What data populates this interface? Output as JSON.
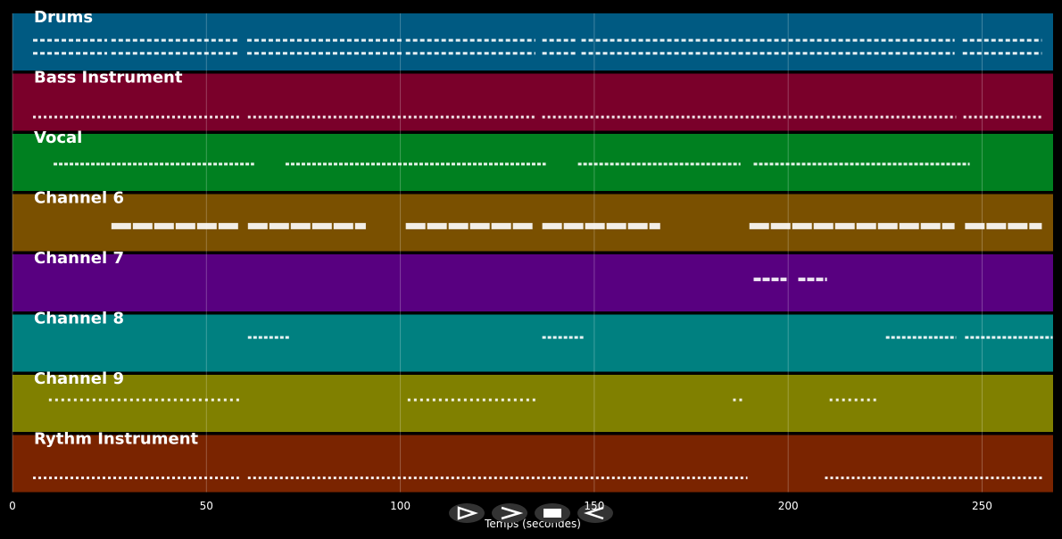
{
  "chart_data": {
    "type": "piano-roll",
    "xlabel": "Temps (secondes)",
    "xlim": [
      0,
      268.3
    ],
    "xticks": [
      0,
      50,
      100,
      150,
      200,
      250
    ],
    "grid": true,
    "tracks": [
      {
        "name": "Drums",
        "color": "#005a82",
        "phrases": [
          [
            5.3,
            24.4
          ],
          [
            25.5,
            58.4
          ],
          [
            60.5,
            100.3
          ],
          [
            101.4,
            134.8
          ],
          [
            136.6,
            145.4
          ],
          [
            146.7,
            242.9
          ],
          [
            245,
            265.4
          ]
        ]
      },
      {
        "name": "Bass Instrument",
        "color": "#7a002a",
        "phrases": [
          [
            5.3,
            58.4
          ],
          [
            60.7,
            134.8
          ],
          [
            136.6,
            209.5
          ],
          [
            210,
            243.3
          ],
          [
            245.2,
            265.9
          ]
        ]
      },
      {
        "name": "Vocal",
        "color": "#008020",
        "phrases": [
          [
            10.6,
            22.5
          ],
          [
            22.8,
            62.3
          ],
          [
            70.4,
            137.5
          ],
          [
            145.8,
            187.7
          ],
          [
            191.1,
            246.8
          ]
        ]
      },
      {
        "name": "Channel 6",
        "color": "#7a5000",
        "phrases": [
          [
            25.5,
            58.4
          ],
          [
            60.7,
            91.1
          ],
          [
            101.4,
            134.3
          ],
          [
            136.6,
            167
          ],
          [
            190,
            242.9
          ],
          [
            245.6,
            265.4
          ]
        ]
      },
      {
        "name": "Channel 7",
        "color": "#580080",
        "phrases": [
          [
            191.1,
            199.6
          ],
          [
            202.6,
            210
          ]
        ]
      },
      {
        "name": "Channel 8",
        "color": "#008080",
        "phrases": [
          [
            60.7,
            71.5
          ],
          [
            136.6,
            147.4
          ],
          [
            225.2,
            243.3
          ],
          [
            245.6,
            268.2
          ]
        ]
      },
      {
        "name": "Channel 9",
        "color": "#808000",
        "phrases": [
          [
            9.4,
            58.9
          ],
          [
            101.9,
            134.8
          ],
          [
            185.8,
            188.1
          ],
          [
            210.7,
            223.3
          ]
        ]
      },
      {
        "name": "Rythm Instrument",
        "color": "#7a2400",
        "phrases": [
          [
            5.3,
            58.4
          ],
          [
            60.7,
            189.5
          ],
          [
            209.5,
            265.9
          ]
        ]
      }
    ]
  }
}
